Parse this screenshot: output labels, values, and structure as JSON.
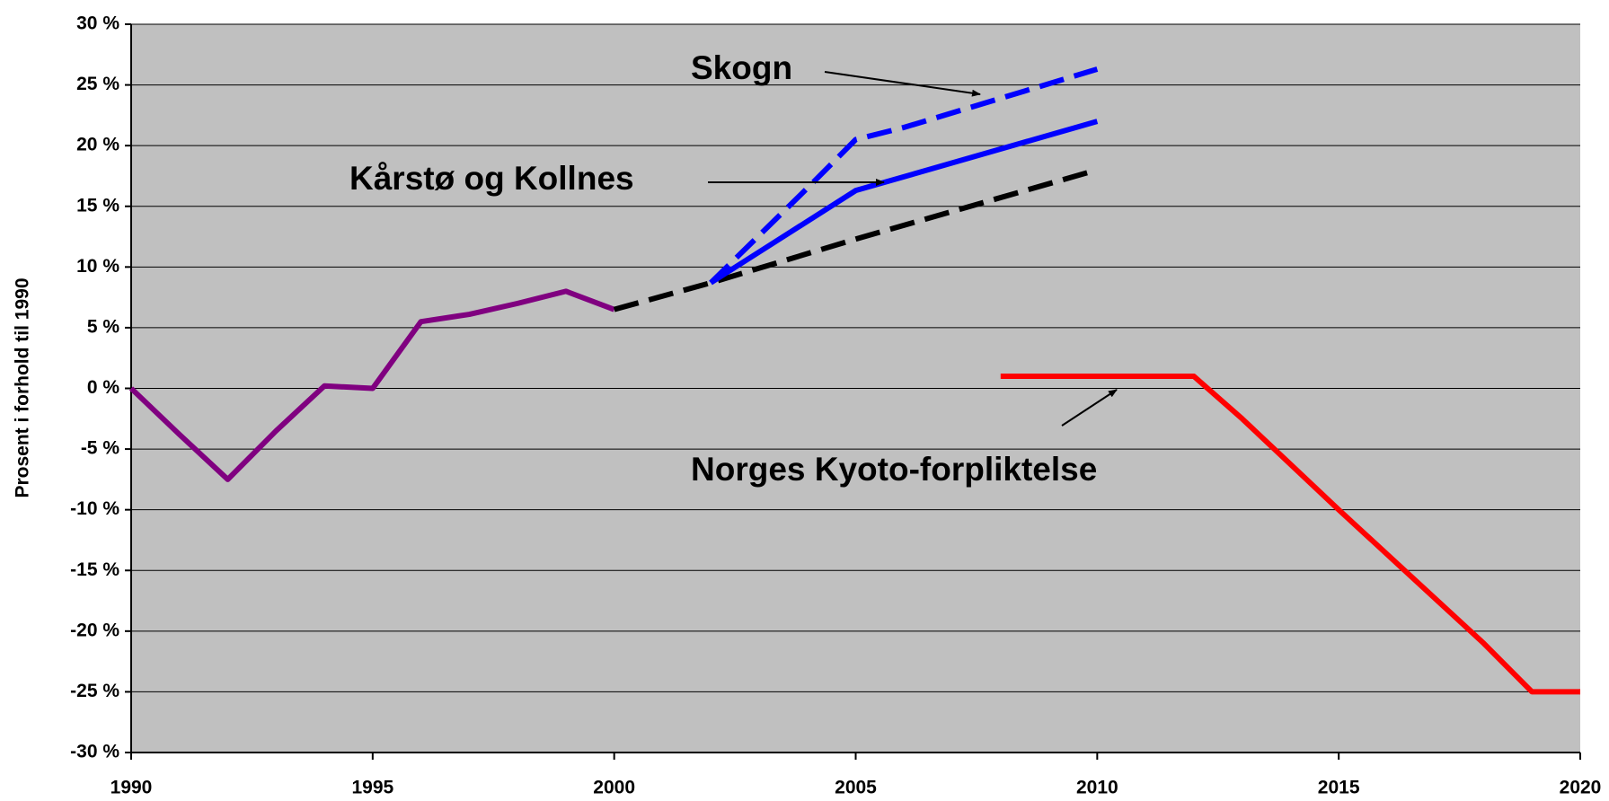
{
  "chart_data": {
    "type": "line",
    "y_label": "Prosent i forhold til 1990",
    "xlim": [
      1990,
      2020
    ],
    "xticks": [
      1990,
      1995,
      2000,
      2005,
      2010,
      2015,
      2020
    ],
    "ylim": [
      -30,
      30
    ],
    "yticks": [
      {
        "value": 30,
        "label": "30 %"
      },
      {
        "value": 25,
        "label": "25 %"
      },
      {
        "value": 20,
        "label": "20 %"
      },
      {
        "value": 15,
        "label": "15 %"
      },
      {
        "value": 10,
        "label": "10 %"
      },
      {
        "value": 5,
        "label": "5 %"
      },
      {
        "value": 0,
        "label": "0 %"
      },
      {
        "value": -5,
        "label": "-5 %"
      },
      {
        "value": -10,
        "label": "-10 %"
      },
      {
        "value": -15,
        "label": "-15 %"
      },
      {
        "value": -20,
        "label": "-20 %"
      },
      {
        "value": -25,
        "label": "-25 %"
      },
      {
        "value": -30,
        "label": "-30 %"
      }
    ],
    "grid": true,
    "background": "#c0c0c0",
    "annotations": [
      "Skogn",
      "Kårstø og Kollnes",
      "Norges Kyoto-forpliktelse"
    ],
    "series": [
      {
        "color": "#800080",
        "style": "solid",
        "x": [
          1990,
          1991,
          1992,
          1993,
          1994,
          1995,
          1996,
          1997,
          1998,
          1999,
          2000
        ],
        "values": [
          0,
          -3.8,
          -7.5,
          -3.5,
          0.2,
          0,
          5.5,
          6.1,
          7,
          8,
          6.5
        ]
      },
      {
        "color": "#000000",
        "style": "dashed",
        "x": [
          2000,
          2002,
          2005,
          2010
        ],
        "values": [
          6.5,
          8.7,
          12.3,
          18
        ]
      },
      {
        "color": "#0000ff",
        "style": "solid",
        "x": [
          2002,
          2005,
          2010
        ],
        "values": [
          8.7,
          16.3,
          22
        ]
      },
      {
        "color": "#0000ff",
        "style": "dashed",
        "x": [
          2002,
          2004,
          2005,
          2006,
          2010
        ],
        "values": [
          8.7,
          16.5,
          20.5,
          21.5,
          26.3
        ]
      },
      {
        "color": "#ff0000",
        "style": "solid",
        "x": [
          2008,
          2011,
          2012,
          2013,
          2015,
          2018,
          2019,
          2020
        ],
        "values": [
          1,
          1,
          1,
          -2.5,
          -10,
          -21,
          -25,
          -25
        ]
      }
    ]
  }
}
